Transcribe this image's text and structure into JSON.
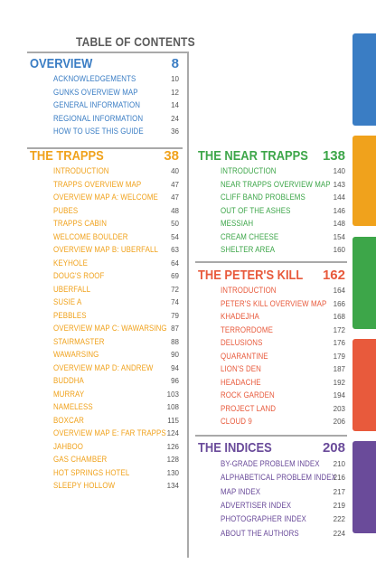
{
  "title": "TABLE OF CONTENTS",
  "colors": {
    "overview": "#3a7dc4",
    "trapps": "#f0a21c",
    "near_trapps": "#3da649",
    "peters_kill": "#e85a3c",
    "indices": "#6a4b9a",
    "rule": "#a9a9a9"
  },
  "overview": {
    "heading": "OVERVIEW",
    "page": "8",
    "entries": [
      {
        "label": "ACKNOWLEDGEMENTS",
        "page": "10"
      },
      {
        "label": "GUNKS OVERVIEW MAP",
        "page": "12"
      },
      {
        "label": "GENERAL INFORMATION",
        "page": "14"
      },
      {
        "label": "REGIONAL INFORMATION",
        "page": "24"
      },
      {
        "label": "HOW TO USE THIS GUIDE",
        "page": "36"
      }
    ]
  },
  "trapps": {
    "heading": "THE TRAPPS",
    "page": "38",
    "entries": [
      {
        "label": "INTRODUCTION",
        "page": "40"
      },
      {
        "label": "TRAPPS OVERVIEW MAP",
        "page": "47"
      },
      {
        "label": "OVERVIEW MAP A: WELCOME",
        "page": "47"
      },
      {
        "label": "PUBES",
        "page": "48"
      },
      {
        "label": "TRAPPS CABIN",
        "page": "50"
      },
      {
        "label": "WELCOME BOULDER",
        "page": "54"
      },
      {
        "label": "OVERVIEW MAP B: UBERFALL",
        "page": "63"
      },
      {
        "label": "KEYHOLE",
        "page": "64"
      },
      {
        "label": "DOUG'S ROOF",
        "page": "69"
      },
      {
        "label": "UBERFALL",
        "page": "72"
      },
      {
        "label": "SUSIE A",
        "page": "74"
      },
      {
        "label": "PEBBLES",
        "page": "79"
      },
      {
        "label": "OVERVIEW MAP C: WAWARSING",
        "page": "87"
      },
      {
        "label": "STAIRMASTER",
        "page": "88"
      },
      {
        "label": "WAWARSING",
        "page": "90"
      },
      {
        "label": "OVERVIEW MAP D: ANDREW",
        "page": "94"
      },
      {
        "label": "BUDDHA",
        "page": "96"
      },
      {
        "label": "MURRAY",
        "page": "103"
      },
      {
        "label": "NAMELESS",
        "page": "108"
      },
      {
        "label": "BOXCAR",
        "page": "115"
      },
      {
        "label": "OVERVIEW MAP E: FAR TRAPPS",
        "page": "124"
      },
      {
        "label": "JAHBOO",
        "page": "126"
      },
      {
        "label": "GAS CHAMBER",
        "page": "128"
      },
      {
        "label": "HOT SPRINGS HOTEL",
        "page": "130"
      },
      {
        "label": "SLEEPY HOLLOW",
        "page": "134"
      }
    ]
  },
  "near_trapps": {
    "heading": "THE NEAR TRAPPS",
    "page": "138",
    "entries": [
      {
        "label": "INTRODUCTION",
        "page": "140"
      },
      {
        "label": "NEAR TRAPPS OVERVIEW MAP",
        "page": "143"
      },
      {
        "label": "CLIFF BAND PROBLEMS",
        "page": "144"
      },
      {
        "label": "OUT OF THE ASHES",
        "page": "146"
      },
      {
        "label": "MESSIAH",
        "page": "148"
      },
      {
        "label": "CREAM CHEESE",
        "page": "154"
      },
      {
        "label": "SHELTER AREA",
        "page": "160"
      }
    ]
  },
  "peters_kill": {
    "heading": "THE PETER'S KILL",
    "page": "162",
    "entries": [
      {
        "label": "INTRODUCTION",
        "page": "164"
      },
      {
        "label": "PETER'S KILL OVERVIEW MAP",
        "page": "166"
      },
      {
        "label": "KHADEJHA",
        "page": "168"
      },
      {
        "label": "TERRORDOME",
        "page": "172"
      },
      {
        "label": "DELUSIONS",
        "page": "176"
      },
      {
        "label": "QUARANTINE",
        "page": "179"
      },
      {
        "label": "LION'S DEN",
        "page": "187"
      },
      {
        "label": "HEADACHE",
        "page": "192"
      },
      {
        "label": "ROCK GARDEN",
        "page": "194"
      },
      {
        "label": "PROJECT LAND",
        "page": "203"
      },
      {
        "label": "CLOUD 9",
        "page": "206"
      }
    ]
  },
  "indices": {
    "heading": "THE INDICES",
    "page": "208",
    "entries": [
      {
        "label": "BY-GRADE PROBLEM INDEX",
        "page": "210"
      },
      {
        "label": "ALPHABETICAL PROBLEM INDEX",
        "page": "216"
      },
      {
        "label": "MAP INDEX",
        "page": "217"
      },
      {
        "label": "ADVERTISER INDEX",
        "page": "219"
      },
      {
        "label": "PHOTOGRAPHER INDEX",
        "page": "222"
      },
      {
        "label": "ABOUT THE AUTHORS",
        "page": "224"
      }
    ]
  }
}
